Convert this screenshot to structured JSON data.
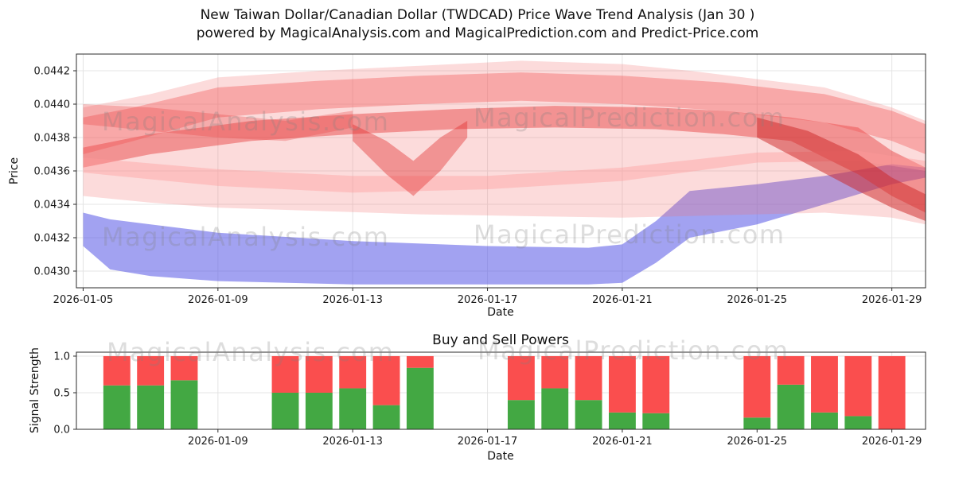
{
  "title": {
    "line1": "New Taiwan Dollar/Canadian Dollar (TWDCAD) Price Wave Trend Analysis (Jan 30 )",
    "line2": "powered by MagicalAnalysis.com and MagicalPrediction.com and Predict-Price.com"
  },
  "watermarks": {
    "analysis": "MagicalAnalysis.com",
    "prediction": "MagicalPrediction.com"
  },
  "chart_data": [
    {
      "type": "area",
      "name": "price-wave-trend",
      "xlabel": "Date",
      "ylabel": "Price",
      "xlim_days": [
        -0.2,
        25.0
      ],
      "ylim": [
        0.0429,
        0.0443
      ],
      "y_ticks": [
        {
          "v": 0.043,
          "label": "0.0430"
        },
        {
          "v": 0.0432,
          "label": "0.0432"
        },
        {
          "v": 0.0434,
          "label": "0.0434"
        },
        {
          "v": 0.0436,
          "label": "0.0436"
        },
        {
          "v": 0.0438,
          "label": "0.0438"
        },
        {
          "v": 0.044,
          "label": "0.0440"
        },
        {
          "v": 0.0442,
          "label": "0.0442"
        }
      ],
      "x_ticks": [
        {
          "day": 0,
          "label": "2026-01-05"
        },
        {
          "day": 4,
          "label": "2026-01-09"
        },
        {
          "day": 8,
          "label": "2026-01-13"
        },
        {
          "day": 12,
          "label": "2026-01-17"
        },
        {
          "day": 16,
          "label": "2026-01-21"
        },
        {
          "day": 20,
          "label": "2026-01-25"
        },
        {
          "day": 24,
          "label": "2026-01-29"
        }
      ],
      "bands": [
        {
          "name": "forecast-band-blue",
          "color": "#5555e5",
          "opacity": 0.55,
          "x": [
            0,
            0.8,
            2,
            4,
            8,
            12,
            15,
            16,
            17,
            18,
            20,
            22,
            24,
            25
          ],
          "upper": [
            0.04335,
            0.04331,
            0.04328,
            0.04323,
            0.04318,
            0.04315,
            0.04314,
            0.04316,
            0.0433,
            0.04348,
            0.04352,
            0.04357,
            0.04364,
            0.04362
          ],
          "lower": [
            0.04315,
            0.04301,
            0.04297,
            0.04294,
            0.04292,
            0.04292,
            0.04292,
            0.04293,
            0.04305,
            0.0432,
            0.04328,
            0.0434,
            0.04352,
            0.04356
          ]
        },
        {
          "name": "wave-band-outer",
          "color": "#f47070",
          "opacity": 0.25,
          "x": [
            0,
            2,
            4,
            7,
            10,
            13,
            16,
            18,
            20,
            22,
            24,
            25
          ],
          "upper": [
            0.04398,
            0.04406,
            0.04416,
            0.0442,
            0.04423,
            0.04426,
            0.04424,
            0.0442,
            0.04415,
            0.0441,
            0.04398,
            0.0439
          ],
          "lower": [
            0.04345,
            0.04341,
            0.04338,
            0.04336,
            0.04334,
            0.04333,
            0.04332,
            0.04333,
            0.04334,
            0.04335,
            0.04332,
            0.04328
          ]
        },
        {
          "name": "wave-band-core",
          "color": "#e63939",
          "opacity": 0.45,
          "x": [
            0,
            2,
            5,
            8,
            11,
            14,
            17,
            19,
            21,
            23,
            24,
            25
          ],
          "upper": [
            0.04374,
            0.04382,
            0.0439,
            0.04394,
            0.04397,
            0.04399,
            0.04398,
            0.04396,
            0.04392,
            0.04386,
            0.04372,
            0.04362
          ],
          "lower": [
            0.04362,
            0.0437,
            0.04378,
            0.04382,
            0.04385,
            0.04386,
            0.04385,
            0.04382,
            0.04378,
            0.04358,
            0.04345,
            0.04335
          ]
        },
        {
          "name": "wave-band-upper",
          "color": "#f25454",
          "opacity": 0.38,
          "x": [
            0,
            1.5,
            4,
            7,
            10,
            13,
            16,
            19,
            22,
            24,
            25
          ],
          "upper": [
            0.04392,
            0.04398,
            0.0441,
            0.04414,
            0.04417,
            0.04419,
            0.04417,
            0.04413,
            0.04406,
            0.04396,
            0.04388
          ],
          "lower": [
            0.0437,
            0.04378,
            0.04392,
            0.04397,
            0.044,
            0.04402,
            0.044,
            0.04396,
            0.04389,
            0.04378,
            0.0437
          ]
        },
        {
          "name": "wave-band-streak",
          "color": "#ff9c9c",
          "opacity": 0.4,
          "x": [
            0,
            4,
            8,
            12,
            16,
            20,
            23,
            25
          ],
          "upper": [
            0.04368,
            0.04361,
            0.04357,
            0.04357,
            0.04362,
            0.04371,
            0.04372,
            0.04366
          ],
          "lower": [
            0.04359,
            0.04351,
            0.04347,
            0.04349,
            0.04354,
            0.04365,
            0.04366,
            0.0436
          ]
        },
        {
          "name": "wave-band-tail",
          "color": "#cc2424",
          "opacity": 0.5,
          "x": [
            20,
            21.5,
            23,
            24,
            25
          ],
          "upper": [
            0.04392,
            0.04384,
            0.0437,
            0.04356,
            0.04346
          ],
          "lower": [
            0.0438,
            0.04364,
            0.04348,
            0.04338,
            0.0433
          ]
        },
        {
          "name": "wave-band-dip",
          "color": "#e02828",
          "opacity": 0.4,
          "x": [
            8,
            9,
            9.8,
            10.6,
            11.4
          ],
          "upper": [
            0.04388,
            0.04378,
            0.04366,
            0.0438,
            0.0439
          ],
          "lower": [
            0.04378,
            0.04358,
            0.04345,
            0.0436,
            0.0438
          ]
        },
        {
          "name": "wave-band-cross",
          "color": "#e84040",
          "opacity": 0.3,
          "x": [
            0,
            2,
            4,
            6,
            8
          ],
          "upper": [
            0.044,
            0.04398,
            0.04394,
            0.0439,
            0.04396
          ],
          "lower": [
            0.04388,
            0.04384,
            0.0438,
            0.04378,
            0.04386
          ]
        }
      ]
    },
    {
      "type": "bar",
      "name": "buy-sell-powers",
      "title": "Buy and Sell Powers",
      "xlabel": "Date",
      "ylabel": "Signal Strength",
      "xlim_days": [
        -0.2,
        25.0
      ],
      "ylim": [
        0,
        1.054
      ],
      "y_ticks": [
        {
          "v": 0.0,
          "label": "0.0"
        },
        {
          "v": 0.5,
          "label": "0.5"
        },
        {
          "v": 1.0,
          "label": "1.0"
        }
      ],
      "x_ticks": [
        {
          "day": 4,
          "label": "2026-01-09"
        },
        {
          "day": 8,
          "label": "2026-01-13"
        },
        {
          "day": 12,
          "label": "2026-01-17"
        },
        {
          "day": 16,
          "label": "2026-01-21"
        },
        {
          "day": 20,
          "label": "2026-01-25"
        },
        {
          "day": 24,
          "label": "2026-01-29"
        }
      ],
      "bar_width_days": 0.8,
      "colors": {
        "buy": "#43a843",
        "sell": "#fa4e4e"
      },
      "bars": [
        {
          "date": "2026-01-06",
          "day": 1,
          "buy": 0.6,
          "sell": 0.4
        },
        {
          "date": "2026-01-07",
          "day": 2,
          "buy": 0.6,
          "sell": 0.4
        },
        {
          "date": "2026-01-08",
          "day": 3,
          "buy": 0.67,
          "sell": 0.33
        },
        {
          "date": "2026-01-11",
          "day": 6,
          "buy": 0.5,
          "sell": 0.5
        },
        {
          "date": "2026-01-12",
          "day": 7,
          "buy": 0.5,
          "sell": 0.5
        },
        {
          "date": "2026-01-13",
          "day": 8,
          "buy": 0.56,
          "sell": 0.44
        },
        {
          "date": "2026-01-14",
          "day": 9,
          "buy": 0.33,
          "sell": 0.67
        },
        {
          "date": "2026-01-15",
          "day": 10,
          "buy": 0.84,
          "sell": 0.16
        },
        {
          "date": "2026-01-18",
          "day": 13,
          "buy": 0.4,
          "sell": 0.6
        },
        {
          "date": "2026-01-19",
          "day": 14,
          "buy": 0.56,
          "sell": 0.44
        },
        {
          "date": "2026-01-20",
          "day": 15,
          "buy": 0.4,
          "sell": 0.6
        },
        {
          "date": "2026-01-21",
          "day": 16,
          "buy": 0.23,
          "sell": 0.77
        },
        {
          "date": "2026-01-22",
          "day": 17,
          "buy": 0.22,
          "sell": 0.78
        },
        {
          "date": "2026-01-25",
          "day": 20,
          "buy": 0.16,
          "sell": 0.84
        },
        {
          "date": "2026-01-26",
          "day": 21,
          "buy": 0.61,
          "sell": 0.39
        },
        {
          "date": "2026-01-27",
          "day": 22,
          "buy": 0.23,
          "sell": 0.77
        },
        {
          "date": "2026-01-28",
          "day": 23,
          "buy": 0.18,
          "sell": 0.82
        },
        {
          "date": "2026-01-29",
          "day": 24,
          "buy": 0.0,
          "sell": 1.0
        }
      ]
    }
  ]
}
